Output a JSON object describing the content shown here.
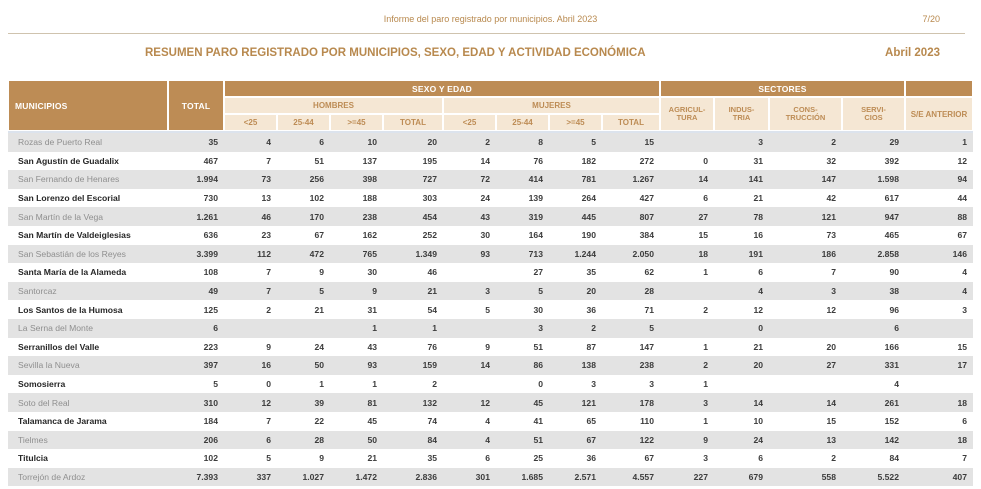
{
  "page": {
    "header_left": "Informe del paro registrado por municipios. Abril 2023",
    "page_number": "7/20",
    "title": "RESUMEN PARO REGISTRADO POR MUNICIPIOS, SEXO, EDAD Y ACTIVIDAD ECONÓMICA",
    "period": "Abril 2023"
  },
  "colors": {
    "accent_tan": "#BD8C55",
    "cream": "#F5E7D4",
    "row_alt_gray": "#E3E3E3",
    "text_dark": "#3C3C3C",
    "muted_name_gray": "#8F8F8F"
  },
  "table": {
    "headers": {
      "municipios": "MUNICIPIOS",
      "total": "TOTAL",
      "sexo_edad": "SEXO Y EDAD",
      "sectores": "SECTORES",
      "hombres": "HOMBRES",
      "mujeres": "MUJERES",
      "age_cols": [
        "<25",
        "25-44",
        ">=45",
        "TOTAL"
      ],
      "sector_cols": [
        {
          "l1": "AGRICUL-",
          "l2": "TURA"
        },
        {
          "l1": "INDUS-",
          "l2": "TRIA"
        },
        {
          "l1": "CONS-",
          "l2": "TRUCCIÓN"
        },
        {
          "l1": "SERVI-",
          "l2": "CIOS"
        }
      ],
      "se_anterior": "S/E ANTERIOR"
    },
    "column_keys": [
      "total",
      "hombres_lt25",
      "hombres_25_44",
      "hombres_gte45",
      "hombres_total",
      "mujeres_lt25",
      "mujeres_25_44",
      "mujeres_gte45",
      "mujeres_total",
      "agricultura",
      "industria",
      "construccion",
      "servicios",
      "se_anterior"
    ],
    "rows": [
      {
        "name": "Rozas de Puerto Real",
        "values": [
          "35",
          "4",
          "6",
          "10",
          "20",
          "2",
          "8",
          "5",
          "15",
          "",
          "3",
          "2",
          "29",
          "1"
        ]
      },
      {
        "name": "San Agustín de Guadalix",
        "values": [
          "467",
          "7",
          "51",
          "137",
          "195",
          "14",
          "76",
          "182",
          "272",
          "0",
          "31",
          "32",
          "392",
          "12"
        ]
      },
      {
        "name": "San Fernando de Henares",
        "values": [
          "1.994",
          "73",
          "256",
          "398",
          "727",
          "72",
          "414",
          "781",
          "1.267",
          "14",
          "141",
          "147",
          "1.598",
          "94"
        ]
      },
      {
        "name": "San Lorenzo del Escorial",
        "values": [
          "730",
          "13",
          "102",
          "188",
          "303",
          "24",
          "139",
          "264",
          "427",
          "6",
          "21",
          "42",
          "617",
          "44"
        ]
      },
      {
        "name": "San Martín de la Vega",
        "values": [
          "1.261",
          "46",
          "170",
          "238",
          "454",
          "43",
          "319",
          "445",
          "807",
          "27",
          "78",
          "121",
          "947",
          "88"
        ]
      },
      {
        "name": "San Martín de Valdeiglesias",
        "values": [
          "636",
          "23",
          "67",
          "162",
          "252",
          "30",
          "164",
          "190",
          "384",
          "15",
          "16",
          "73",
          "465",
          "67"
        ]
      },
      {
        "name": "San Sebastián de los Reyes",
        "values": [
          "3.399",
          "112",
          "472",
          "765",
          "1.349",
          "93",
          "713",
          "1.244",
          "2.050",
          "18",
          "191",
          "186",
          "2.858",
          "146"
        ]
      },
      {
        "name": "Santa María de la Alameda",
        "values": [
          "108",
          "7",
          "9",
          "30",
          "46",
          "",
          "27",
          "35",
          "62",
          "1",
          "6",
          "7",
          "90",
          "4"
        ]
      },
      {
        "name": "Santorcaz",
        "values": [
          "49",
          "7",
          "5",
          "9",
          "21",
          "3",
          "5",
          "20",
          "28",
          "",
          "4",
          "3",
          "38",
          "4"
        ]
      },
      {
        "name": "Los Santos de la Humosa",
        "values": [
          "125",
          "2",
          "21",
          "31",
          "54",
          "5",
          "30",
          "36",
          "71",
          "2",
          "12",
          "12",
          "96",
          "3"
        ]
      },
      {
        "name": "La Serna del Monte",
        "values": [
          "6",
          "",
          "",
          "1",
          "1",
          "",
          "3",
          "2",
          "5",
          "",
          "0",
          "",
          "6",
          ""
        ]
      },
      {
        "name": "Serranillos del Valle",
        "values": [
          "223",
          "9",
          "24",
          "43",
          "76",
          "9",
          "51",
          "87",
          "147",
          "1",
          "21",
          "20",
          "166",
          "15"
        ]
      },
      {
        "name": "Sevilla la Nueva",
        "values": [
          "397",
          "16",
          "50",
          "93",
          "159",
          "14",
          "86",
          "138",
          "238",
          "2",
          "20",
          "27",
          "331",
          "17"
        ]
      },
      {
        "name": "Somosierra",
        "values": [
          "5",
          "0",
          "1",
          "1",
          "2",
          "",
          "0",
          "3",
          "3",
          "1",
          "",
          "",
          "4",
          ""
        ]
      },
      {
        "name": "Soto del Real",
        "values": [
          "310",
          "12",
          "39",
          "81",
          "132",
          "12",
          "45",
          "121",
          "178",
          "3",
          "14",
          "14",
          "261",
          "18"
        ]
      },
      {
        "name": "Talamanca de Jarama",
        "values": [
          "184",
          "7",
          "22",
          "45",
          "74",
          "4",
          "41",
          "65",
          "110",
          "1",
          "10",
          "15",
          "152",
          "6"
        ]
      },
      {
        "name": "Tielmes",
        "values": [
          "206",
          "6",
          "28",
          "50",
          "84",
          "4",
          "51",
          "67",
          "122",
          "9",
          "24",
          "13",
          "142",
          "18"
        ]
      },
      {
        "name": "Titulcia",
        "values": [
          "102",
          "5",
          "9",
          "21",
          "35",
          "6",
          "25",
          "36",
          "67",
          "3",
          "6",
          "2",
          "84",
          "7"
        ]
      },
      {
        "name": "Torrejón de Ardoz",
        "values": [
          "7.393",
          "337",
          "1.027",
          "1.472",
          "2.836",
          "301",
          "1.685",
          "2.571",
          "4.557",
          "227",
          "679",
          "558",
          "5.522",
          "407"
        ]
      }
    ]
  }
}
